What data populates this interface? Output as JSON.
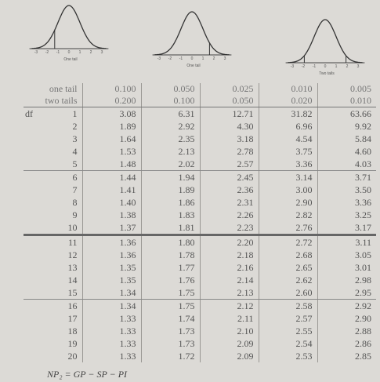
{
  "curves": [
    {
      "caption": "One tail"
    },
    {
      "caption": "One tail"
    },
    {
      "caption": "Two tails"
    }
  ],
  "axis_labels": [
    "-3",
    "-2",
    "-1",
    "0",
    "1",
    "2",
    "3"
  ],
  "table": {
    "header": [
      [
        "one tail",
        "0.100",
        "0.050",
        "0.025",
        "0.010",
        "0.005"
      ],
      [
        "two tails",
        "0.200",
        "0.100",
        "0.050",
        "0.020",
        "0.010"
      ]
    ],
    "df_label": "df",
    "rows": [
      [
        "1",
        "3.08",
        "6.31",
        "12.71",
        "31.82",
        "63.66"
      ],
      [
        "2",
        "1.89",
        "2.92",
        "4.30",
        "6.96",
        "9.92"
      ],
      [
        "3",
        "1.64",
        "2.35",
        "3.18",
        "4.54",
        "5.84"
      ],
      [
        "4",
        "1.53",
        "2.13",
        "2.78",
        "3.75",
        "4.60"
      ],
      [
        "5",
        "1.48",
        "2.02",
        "2.57",
        "3.36",
        "4.03"
      ],
      [
        "6",
        "1.44",
        "1.94",
        "2.45",
        "3.14",
        "3.71"
      ],
      [
        "7",
        "1.41",
        "1.89",
        "2.36",
        "3.00",
        "3.50"
      ],
      [
        "8",
        "1.40",
        "1.86",
        "2.31",
        "2.90",
        "3.36"
      ],
      [
        "9",
        "1.38",
        "1.83",
        "2.26",
        "2.82",
        "3.25"
      ],
      [
        "10",
        "1.37",
        "1.81",
        "2.23",
        "2.76",
        "3.17"
      ],
      [
        "11",
        "1.36",
        "1.80",
        "2.20",
        "2.72",
        "3.11"
      ],
      [
        "12",
        "1.36",
        "1.78",
        "2.18",
        "2.68",
        "3.05"
      ],
      [
        "13",
        "1.35",
        "1.77",
        "2.16",
        "2.65",
        "3.01"
      ],
      [
        "14",
        "1.35",
        "1.76",
        "2.14",
        "2.62",
        "2.98"
      ],
      [
        "15",
        "1.34",
        "1.75",
        "2.13",
        "2.60",
        "2.95"
      ],
      [
        "16",
        "1.34",
        "1.75",
        "2.12",
        "2.58",
        "2.92"
      ],
      [
        "17",
        "1.33",
        "1.74",
        "2.11",
        "2.57",
        "2.90"
      ],
      [
        "18",
        "1.33",
        "1.73",
        "2.10",
        "2.55",
        "2.88"
      ],
      [
        "19",
        "1.33",
        "1.73",
        "2.09",
        "2.54",
        "2.86"
      ],
      [
        "20",
        "1.33",
        "1.72",
        "2.09",
        "2.53",
        "2.85"
      ]
    ]
  },
  "footer": "NP₂ = GP − SP − PI"
}
